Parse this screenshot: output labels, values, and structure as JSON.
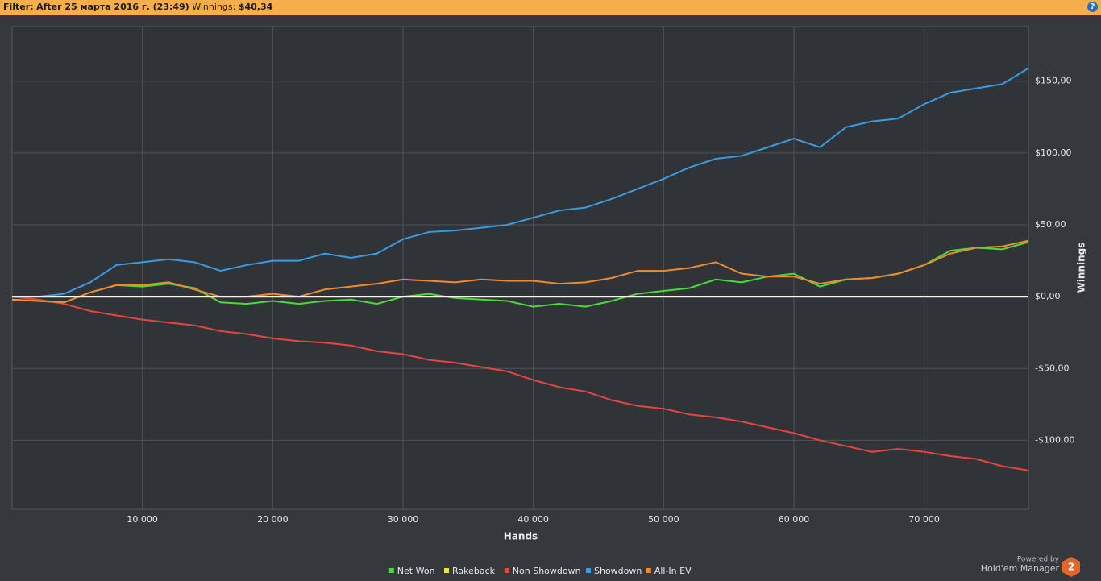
{
  "header": {
    "filter_label": "Filter:",
    "filter_text": "After 25 марта 2016 г. (23:49)",
    "winnings_label": "Winnings:",
    "winnings_value": "$40,34",
    "help": "?"
  },
  "footer": {
    "powered_by": "Powered by",
    "product": "Hold'em Manager",
    "badge": "2"
  },
  "chart_data": {
    "type": "line",
    "xlabel": "Hands",
    "ylabel": "Winnings",
    "x": [
      0,
      2000,
      4000,
      6000,
      8000,
      10000,
      12000,
      14000,
      16000,
      18000,
      20000,
      22000,
      24000,
      26000,
      28000,
      30000,
      32000,
      34000,
      36000,
      38000,
      40000,
      42000,
      44000,
      46000,
      48000,
      50000,
      52000,
      54000,
      56000,
      58000,
      60000,
      62000,
      64000,
      66000,
      68000,
      70000,
      72000,
      74000,
      76000,
      78000
    ],
    "xlim": [
      0,
      78000
    ],
    "xticks": [
      {
        "value": 10000,
        "label": "10 000"
      },
      {
        "value": 20000,
        "label": "20 000"
      },
      {
        "value": 30000,
        "label": "30 000"
      },
      {
        "value": 40000,
        "label": "40 000"
      },
      {
        "value": 50000,
        "label": "50 000"
      },
      {
        "value": 60000,
        "label": "60 000"
      },
      {
        "value": 70000,
        "label": "70 000"
      }
    ],
    "ylim": [
      -148,
      188
    ],
    "yticks": [
      {
        "value": -100,
        "label": "-$100,00"
      },
      {
        "value": -50,
        "label": "-$50,00"
      },
      {
        "value": 0,
        "label": "$0,00"
      },
      {
        "value": 50,
        "label": "$50,00"
      },
      {
        "value": 100,
        "label": "$100,00"
      },
      {
        "value": 150,
        "label": "$150,00"
      }
    ],
    "grid": true,
    "legend": "bottom",
    "series": [
      {
        "name": "Net Won",
        "color": "#4bd93c",
        "values": [
          -2,
          -3,
          -4,
          3,
          8,
          7,
          9,
          6,
          -4,
          -5,
          -3,
          -5,
          -3,
          -2,
          -5,
          0,
          2,
          -1,
          -2,
          -3,
          -7,
          -5,
          -7,
          -3,
          2,
          4,
          6,
          12,
          10,
          14,
          16,
          7,
          12,
          13,
          16,
          22,
          32,
          34,
          33,
          38
        ]
      },
      {
        "name": "Rakeback",
        "color": "#f2e33a",
        "values": [
          0,
          0,
          0,
          0,
          0,
          0,
          0,
          0,
          0,
          0,
          0,
          0,
          0,
          0,
          0,
          0,
          0,
          0,
          0,
          0,
          0,
          0,
          0,
          0,
          0,
          0,
          0,
          0,
          0,
          0,
          0,
          0,
          0,
          0,
          0,
          0,
          0,
          0,
          0,
          0
        ]
      },
      {
        "name": "Non Showdown",
        "color": "#e5463f",
        "values": [
          0,
          -2,
          -5,
          -10,
          -13,
          -16,
          -18,
          -20,
          -24,
          -26,
          -29,
          -31,
          -32,
          -34,
          -38,
          -40,
          -44,
          -46,
          -49,
          -52,
          -58,
          -63,
          -66,
          -72,
          -76,
          -78,
          -82,
          -84,
          -87,
          -91,
          -95,
          -100,
          -104,
          -108,
          -106,
          -108,
          -111,
          -113,
          -118,
          -121
        ]
      },
      {
        "name": "Showdown",
        "color": "#3a9be0",
        "values": [
          0,
          0,
          2,
          10,
          22,
          24,
          26,
          24,
          18,
          22,
          25,
          25,
          30,
          27,
          30,
          40,
          45,
          46,
          48,
          50,
          55,
          60,
          62,
          68,
          75,
          82,
          90,
          96,
          98,
          104,
          110,
          104,
          118,
          122,
          124,
          134,
          142,
          145,
          148,
          159
        ]
      },
      {
        "name": "All-In EV",
        "color": "#f08a30",
        "values": [
          -2,
          -3,
          -4,
          3,
          8,
          8,
          10,
          5,
          0,
          0,
          2,
          0,
          5,
          7,
          9,
          12,
          11,
          10,
          12,
          11,
          11,
          9,
          10,
          13,
          18,
          18,
          20,
          24,
          16,
          14,
          14,
          9,
          12,
          13,
          16,
          22,
          30,
          34,
          35,
          39
        ]
      }
    ]
  }
}
